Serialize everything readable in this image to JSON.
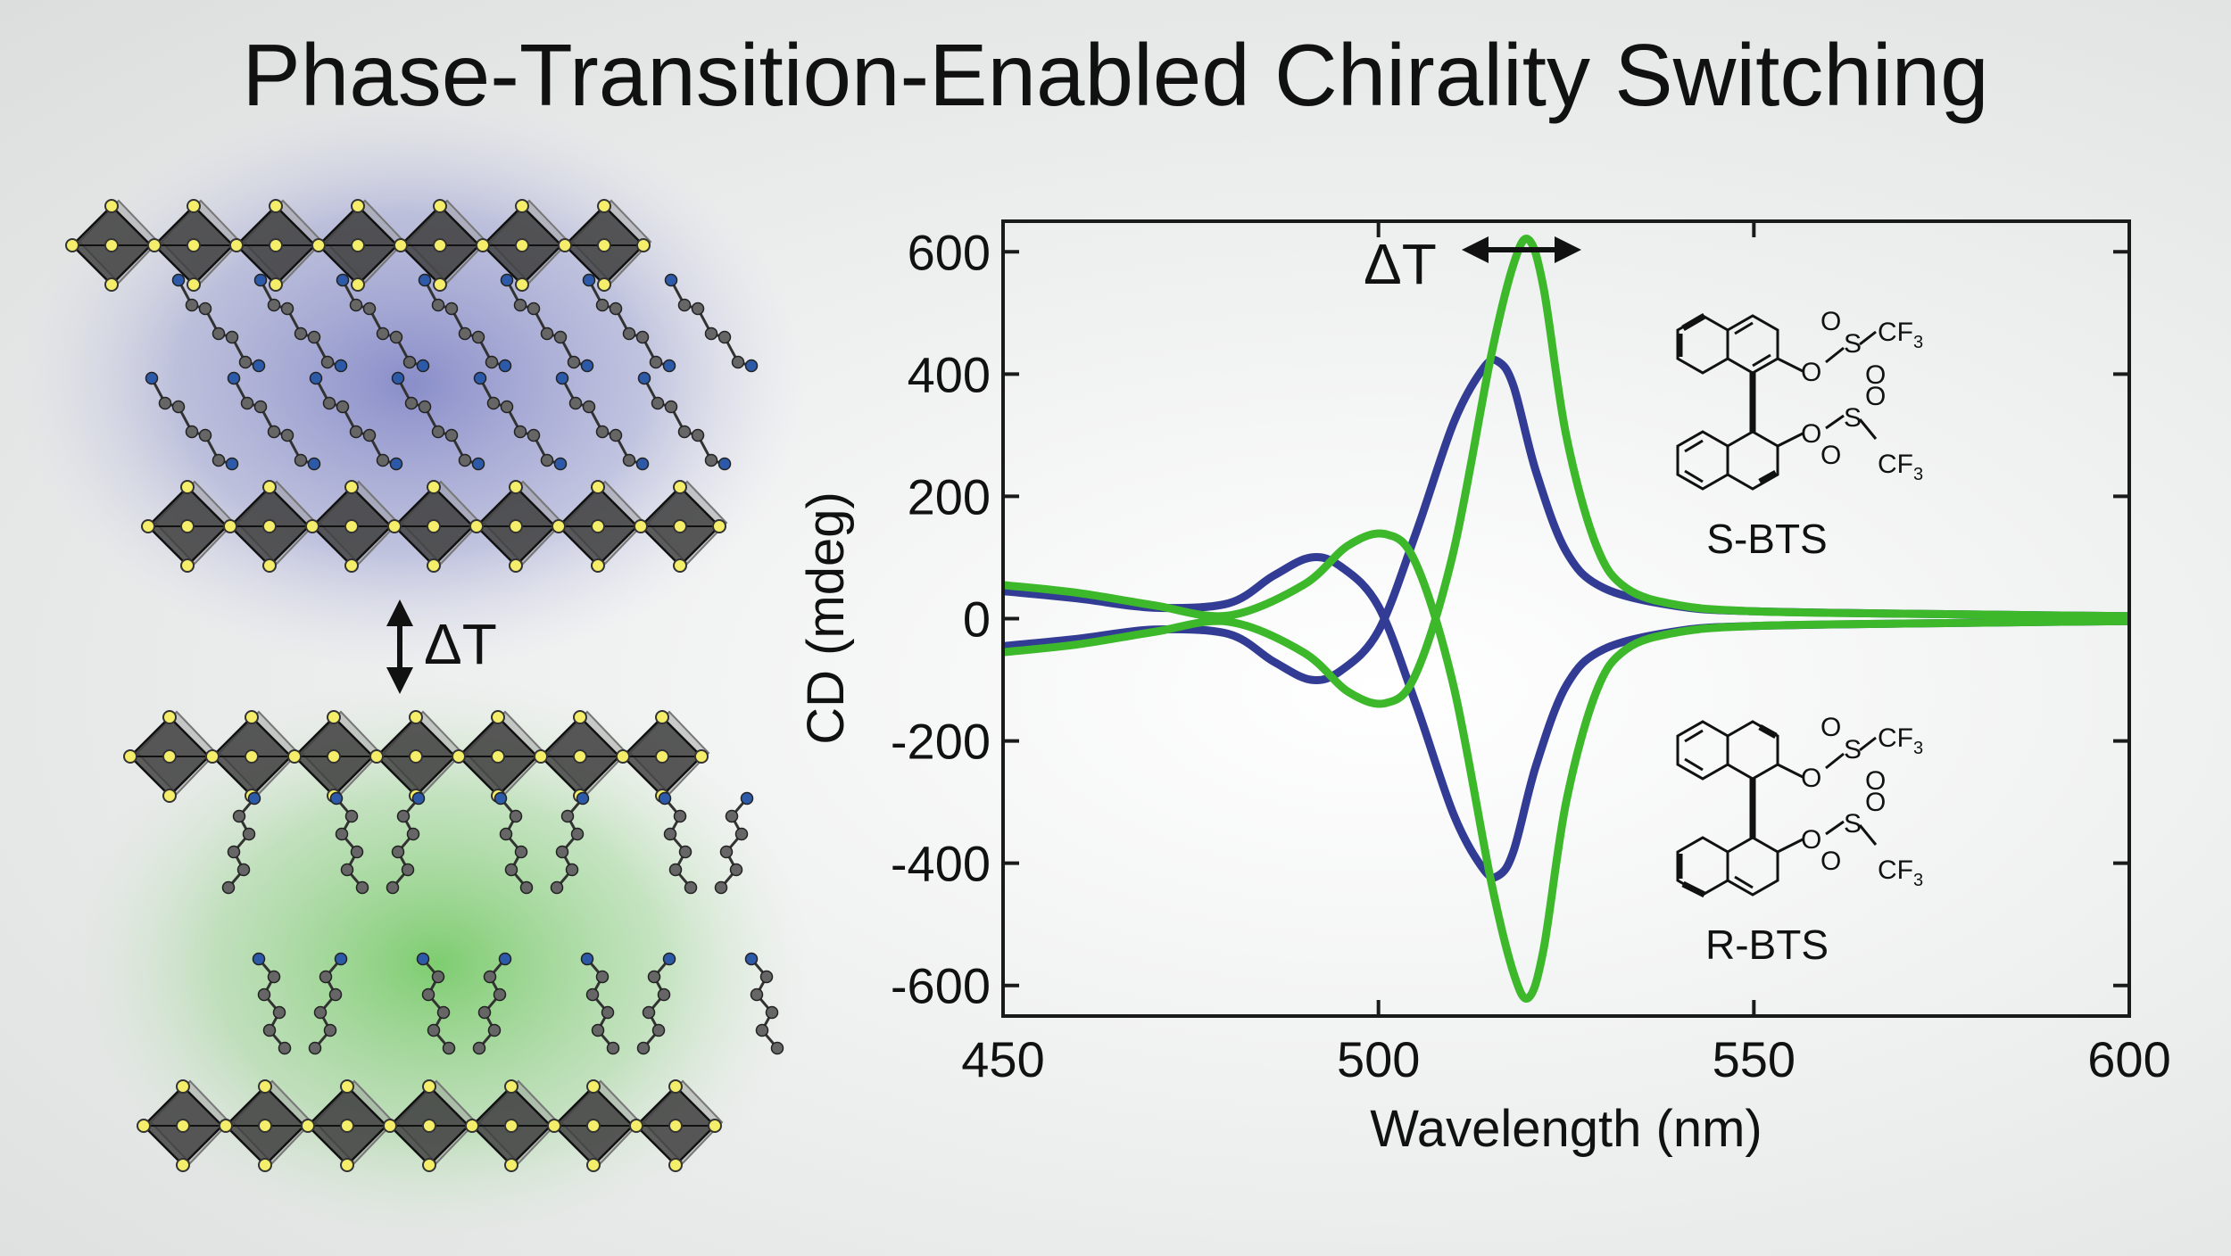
{
  "title": "Phase-Transition-Enabled Chirality Switching",
  "left_panel": {
    "transition_label": "ΔT",
    "colors": {
      "upper_glow": "#6a6fbe",
      "lower_glow": "#4fbf3a",
      "octahedra": "#3a3a3a",
      "atoms": "#f4ee6a",
      "nitrogen": "#2d5aa8"
    }
  },
  "chart_data": {
    "type": "line",
    "xlabel": "Wavelength (nm)",
    "ylabel": "CD (mdeg)",
    "xlim": [
      450,
      600
    ],
    "ylim": [
      -650,
      650
    ],
    "xticks": [
      450,
      500,
      550,
      600
    ],
    "yticks": [
      600,
      400,
      200,
      0,
      -200,
      -400,
      -600
    ],
    "annotation": "ΔT",
    "grid": false,
    "series": [
      {
        "color": "#323c94",
        "x": [
          450,
          460,
          470,
          480,
          486,
          491,
          495,
          500,
          505,
          510,
          514,
          516,
          518,
          521,
          525,
          530,
          540,
          550,
          570,
          600
        ],
        "y": [
          45,
          33,
          18,
          25,
          70,
          100,
          85,
          20,
          -140,
          -320,
          -410,
          -420,
          -380,
          -240,
          -110,
          -50,
          -20,
          -12,
          -8,
          -4
        ]
      },
      {
        "color": "#323c94",
        "x": [
          450,
          460,
          470,
          480,
          486,
          491,
          495,
          500,
          505,
          510,
          514,
          516,
          518,
          521,
          525,
          530,
          540,
          550,
          570,
          600
        ],
        "y": [
          -45,
          -33,
          -18,
          -25,
          -70,
          -100,
          -85,
          -20,
          140,
          320,
          410,
          420,
          380,
          240,
          110,
          50,
          20,
          12,
          8,
          4
        ]
      },
      {
        "color": "#3cb82a",
        "x": [
          450,
          460,
          470,
          480,
          490,
          496,
          501,
          505,
          510,
          515,
          518,
          520,
          522,
          525,
          529,
          533,
          540,
          550,
          570,
          600
        ],
        "y": [
          55,
          42,
          22,
          5,
          55,
          120,
          138,
          90,
          -110,
          -430,
          -580,
          -620,
          -540,
          -300,
          -120,
          -50,
          -22,
          -12,
          -8,
          -4
        ]
      },
      {
        "color": "#3cb82a",
        "x": [
          450,
          460,
          470,
          480,
          490,
          496,
          501,
          505,
          510,
          515,
          518,
          520,
          522,
          525,
          529,
          533,
          540,
          550,
          570,
          600
        ],
        "y": [
          -55,
          -42,
          -22,
          -5,
          -55,
          -120,
          -138,
          -90,
          110,
          430,
          580,
          620,
          540,
          300,
          120,
          50,
          22,
          12,
          8,
          4
        ]
      }
    ],
    "structures": [
      {
        "label": "S-BTS",
        "groups": [
          "CF",
          "3",
          "O",
          "S",
          "O",
          "O",
          "O",
          "S",
          "O",
          "O",
          "CF",
          "3"
        ]
      },
      {
        "label": "R-BTS",
        "groups": [
          "CF",
          "3",
          "O",
          "S",
          "O",
          "O",
          "O",
          "S",
          "O",
          "O",
          "CF",
          "3"
        ]
      }
    ]
  }
}
